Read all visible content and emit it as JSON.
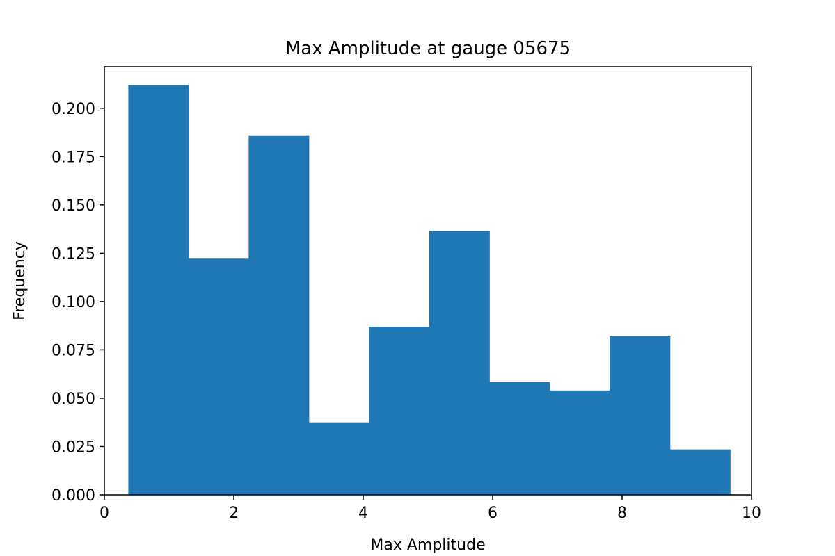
{
  "chart_data": {
    "type": "bar",
    "title": "Max Amplitude at gauge 05675",
    "xlabel": "Max Amplitude",
    "ylabel": "Frequency",
    "xlim": [
      0,
      10
    ],
    "ylim": [
      0,
      0.2215
    ],
    "xticks": [
      0,
      2,
      4,
      6,
      8,
      10
    ],
    "xtick_labels": [
      "0",
      "2",
      "4",
      "6",
      "8",
      "10"
    ],
    "yticks": [
      0,
      0.025,
      0.05,
      0.075,
      0.1,
      0.125,
      0.15,
      0.175,
      0.2
    ],
    "ytick_labels": [
      "0.000",
      "0.025",
      "0.050",
      "0.075",
      "0.100",
      "0.125",
      "0.150",
      "0.175",
      "0.200"
    ],
    "bin_edges": [
      0.37,
      1.3,
      2.23,
      3.16,
      4.09,
      5.02,
      5.95,
      6.88,
      7.81,
      8.74,
      9.67
    ],
    "values": [
      0.212,
      0.1225,
      0.186,
      0.0375,
      0.087,
      0.1365,
      0.0585,
      0.054,
      0.082,
      0.0235
    ],
    "bar_color": "#1f77b4",
    "grid": false,
    "legend": "none"
  }
}
